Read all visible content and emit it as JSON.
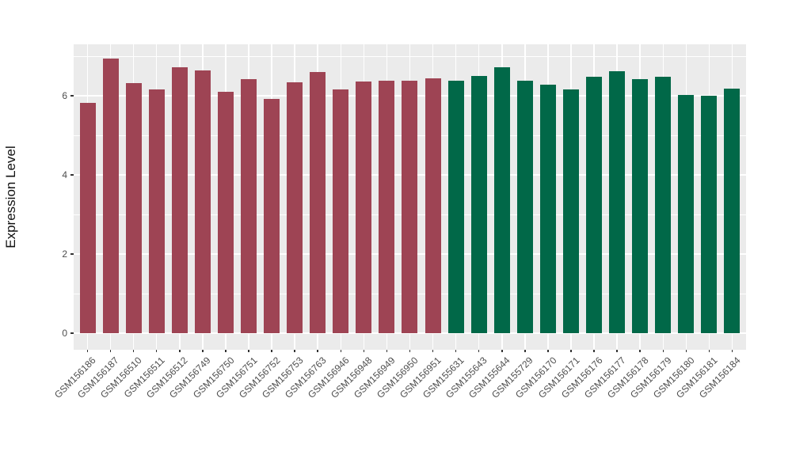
{
  "chart_data": {
    "type": "bar",
    "title": "",
    "xlabel": "",
    "ylabel": "Expression Level",
    "ylim": [
      -0.4,
      7.3
    ],
    "yticks": [
      0,
      2,
      4,
      6
    ],
    "yminorticks": [
      1,
      3,
      5,
      7
    ],
    "grid": "on",
    "legend_position": "none",
    "categories": [
      "GSM156186",
      "GSM156187",
      "GSM156510",
      "GSM156511",
      "GSM156512",
      "GSM156749",
      "GSM156750",
      "GSM156751",
      "GSM156752",
      "GSM156753",
      "GSM156763",
      "GSM156946",
      "GSM156948",
      "GSM156949",
      "GSM156950",
      "GSM156951",
      "GSM155631",
      "GSM155643",
      "GSM155644",
      "GSM155729",
      "GSM156170",
      "GSM156171",
      "GSM156176",
      "GSM156177",
      "GSM156178",
      "GSM156179",
      "GSM156180",
      "GSM156181",
      "GSM156184"
    ],
    "values": [
      5.82,
      6.94,
      6.32,
      6.17,
      6.73,
      6.65,
      6.1,
      6.43,
      5.92,
      6.35,
      6.6,
      6.17,
      6.36,
      6.39,
      6.38,
      6.44,
      6.38,
      6.5,
      6.72,
      6.39,
      6.29,
      6.17,
      6.48,
      6.63,
      6.42,
      6.48,
      6.03,
      6.01,
      6.18
    ],
    "groups": [
      "group1",
      "group1",
      "group1",
      "group1",
      "group1",
      "group1",
      "group1",
      "group1",
      "group1",
      "group1",
      "group1",
      "group1",
      "group1",
      "group1",
      "group1",
      "group1",
      "group2",
      "group2",
      "group2",
      "group2",
      "group2",
      "group2",
      "group2",
      "group2",
      "group2",
      "group2",
      "group2",
      "group2",
      "group2"
    ],
    "group_colors": {
      "group1": "#9e4454",
      "group2": "#016848"
    }
  },
  "colors": {
    "background": "#ffffff",
    "panel_background": "#ebebeb",
    "gridline": "#ffffff",
    "tick_label": "#4d4d4d",
    "tick_mark": "#333333",
    "axis_title": "#111111"
  }
}
